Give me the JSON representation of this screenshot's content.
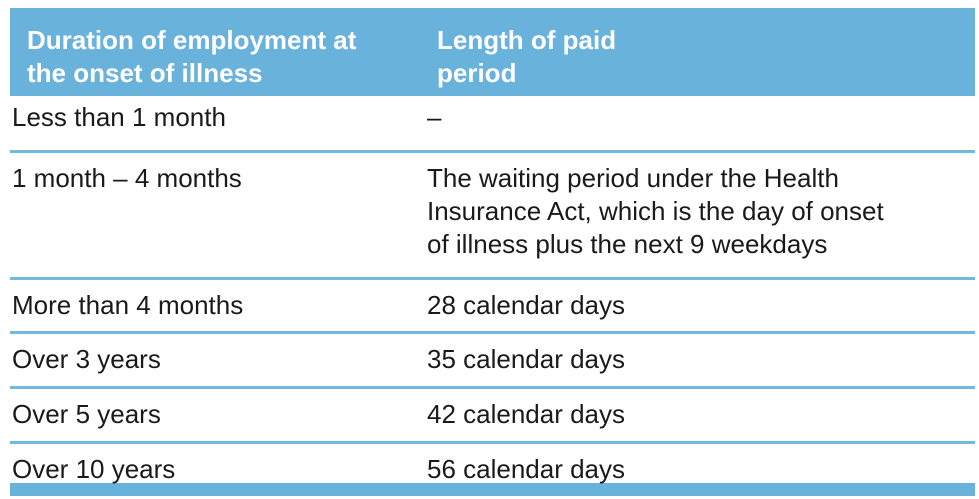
{
  "table": {
    "colors": {
      "accent": "#69b2dc",
      "divider": "#74b8e0",
      "header_text": "#ffffff",
      "text": "#1a1a1a"
    },
    "header": {
      "col1": "Duration of employment at\nthe onset of illness",
      "col2": "Length of paid\nperiod"
    },
    "rows": [
      {
        "duration": "Less than 1 month",
        "paid_period": "–"
      },
      {
        "duration": "1 month – 4 months",
        "paid_period": "The waiting period under the Health\nInsurance Act, which is the day of onset\nof illness plus the next 9 weekdays"
      },
      {
        "duration": "More than 4 months",
        "paid_period": "28 calendar days"
      },
      {
        "duration": "Over 3 years",
        "paid_period": "35 calendar days"
      },
      {
        "duration": "Over 5 years",
        "paid_period": "42 calendar days"
      },
      {
        "duration": "Over 10 years",
        "paid_period": "56 calendar days"
      }
    ]
  }
}
